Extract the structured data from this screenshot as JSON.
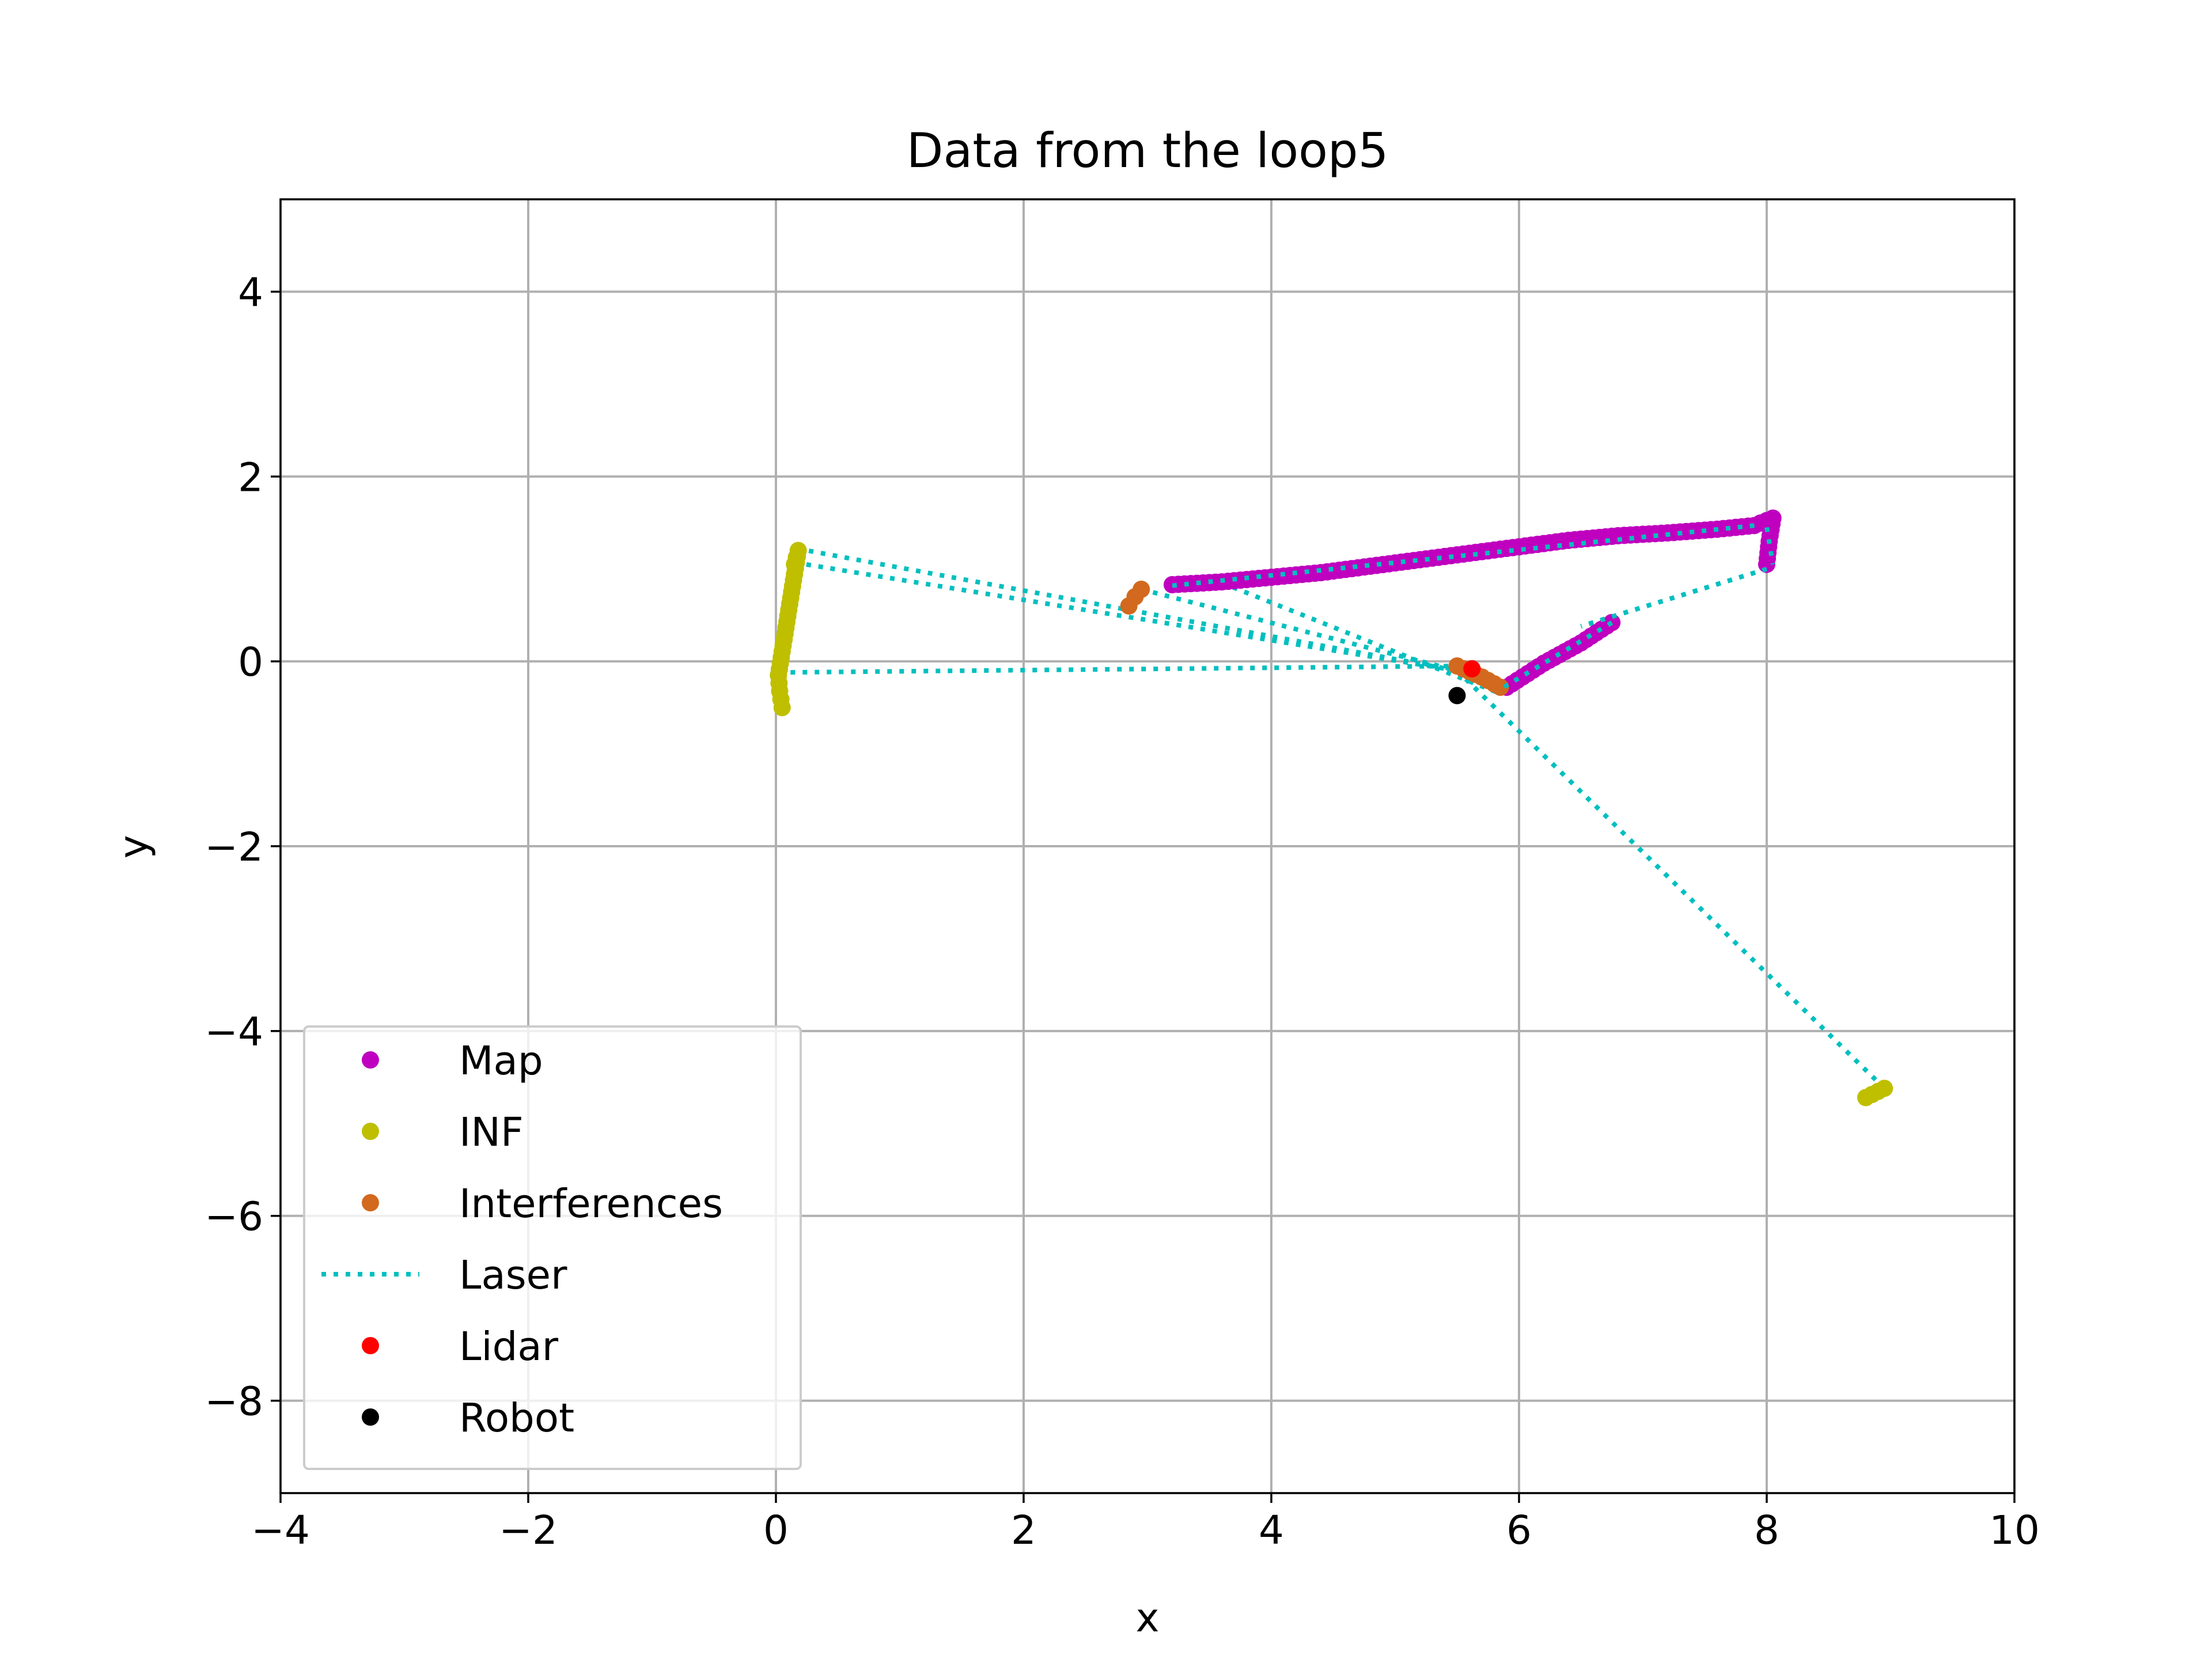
{
  "chart_data": {
    "type": "scatter",
    "title": "Data from the loop5",
    "xlabel": "x",
    "ylabel": "y",
    "xlim": [
      -4,
      10
    ],
    "ylim": [
      -9,
      5
    ],
    "x_ticks": [
      -4,
      -2,
      0,
      2,
      4,
      6,
      8,
      10
    ],
    "y_ticks": [
      -8,
      -6,
      -4,
      -2,
      0,
      2,
      4
    ],
    "x_tick_labels": [
      "−4",
      "−2",
      "0",
      "2",
      "4",
      "6",
      "8",
      "10"
    ],
    "y_tick_labels": [
      "−8",
      "−6",
      "−4",
      "−2",
      "0",
      "2",
      "4"
    ],
    "grid": true,
    "legend_position": "lower-left",
    "series": [
      {
        "name": "Map",
        "style": "markers",
        "color": "#bf00bf",
        "points": [
          [
            3.2,
            0.83
          ],
          [
            3.6,
            0.86
          ],
          [
            4.0,
            0.91
          ],
          [
            4.4,
            0.96
          ],
          [
            4.8,
            1.03
          ],
          [
            5.2,
            1.1
          ],
          [
            5.6,
            1.17
          ],
          [
            6.0,
            1.24
          ],
          [
            6.4,
            1.31
          ],
          [
            6.8,
            1.36
          ],
          [
            7.2,
            1.39
          ],
          [
            7.6,
            1.43
          ],
          [
            7.9,
            1.47
          ],
          [
            8.05,
            1.55
          ],
          [
            8.02,
            1.3
          ],
          [
            8.0,
            1.05
          ],
          [
            5.9,
            -0.28
          ],
          [
            6.2,
            -0.02
          ],
          [
            6.5,
            0.2
          ],
          [
            6.75,
            0.42
          ]
        ]
      },
      {
        "name": "INF",
        "style": "markers",
        "color": "#bfbf00",
        "points": [
          [
            0.15,
            1.05
          ],
          [
            0.18,
            1.2
          ],
          [
            0.02,
            -0.15
          ],
          [
            0.03,
            -0.32
          ],
          [
            0.05,
            -0.5
          ],
          [
            8.8,
            -4.72
          ],
          [
            8.95,
            -4.62
          ]
        ]
      },
      {
        "name": "Interferences",
        "style": "markers",
        "color": "#d2691e",
        "points": [
          [
            2.85,
            0.6
          ],
          [
            2.9,
            0.7
          ],
          [
            2.95,
            0.78
          ],
          [
            5.5,
            -0.05
          ],
          [
            5.7,
            -0.17
          ],
          [
            5.85,
            -0.28
          ]
        ]
      },
      {
        "name": "Laser",
        "style": "dotted-line",
        "color": "#00bfbf",
        "segments": [
          [
            [
              3.2,
              0.82
            ],
            [
              7.9,
              1.47
            ]
          ],
          [
            [
              8.0,
              1.45
            ],
            [
              8.05,
              1.05
            ]
          ],
          [
            [
              8.0,
              1.0
            ],
            [
              6.5,
              0.38
            ]
          ],
          [
            [
              6.75,
              0.42
            ],
            [
              5.85,
              -0.3
            ]
          ],
          [
            [
              0.17,
              1.22
            ],
            [
              5.5,
              -0.1
            ]
          ],
          [
            [
              0.15,
              1.07
            ],
            [
              5.5,
              -0.1
            ]
          ],
          [
            [
              0.02,
              -0.12
            ],
            [
              5.5,
              -0.05
            ]
          ],
          [
            [
              0.04,
              -0.45
            ],
            [
              0.04,
              -0.12
            ]
          ],
          [
            [
              2.95,
              0.78
            ],
            [
              5.5,
              -0.1
            ]
          ],
          [
            [
              3.6,
              0.85
            ],
            [
              5.85,
              -0.35
            ]
          ],
          [
            [
              5.5,
              -0.1
            ],
            [
              8.95,
              -4.62
            ]
          ]
        ]
      },
      {
        "name": "Lidar",
        "style": "markers",
        "color": "#ff0000",
        "points": [
          [
            5.62,
            -0.08
          ]
        ]
      },
      {
        "name": "Robot",
        "style": "markers",
        "color": "#000000",
        "points": [
          [
            5.5,
            -0.37
          ]
        ]
      }
    ]
  }
}
